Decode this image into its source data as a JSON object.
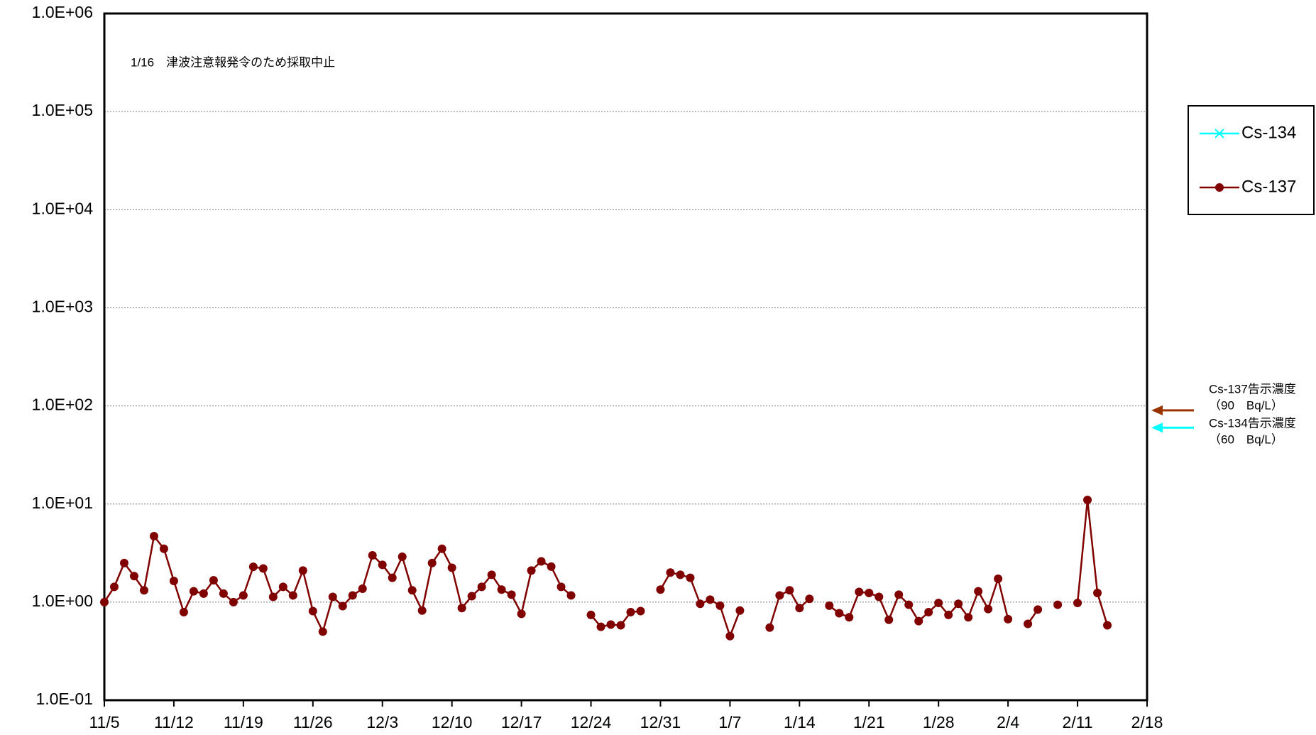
{
  "chart_data": {
    "type": "line",
    "log_scale": true,
    "grid": true,
    "legend_position": "right",
    "annotations": [
      "1/16　津波注意報発令のため採取中止"
    ],
    "limits": [
      {
        "name": "Cs-137",
        "value": 90,
        "color": "#993300",
        "label": [
          "Cs-137告示濃度",
          "（90　Bq/L）"
        ]
      },
      {
        "name": "Cs-134",
        "value": 60,
        "color": "#00ffff",
        "label": [
          "Cs-134告示濃度",
          "（60　Bq/L）"
        ]
      }
    ],
    "xlim": [
      0,
      105
    ],
    "xticks": [
      {
        "value": 0,
        "label": "11/5"
      },
      {
        "value": 7,
        "label": "11/12"
      },
      {
        "value": 14,
        "label": "11/19"
      },
      {
        "value": 21,
        "label": "11/26"
      },
      {
        "value": 28,
        "label": "12/3"
      },
      {
        "value": 35,
        "label": "12/10"
      },
      {
        "value": 42,
        "label": "12/17"
      },
      {
        "value": 49,
        "label": "12/24"
      },
      {
        "value": 56,
        "label": "12/31"
      },
      {
        "value": 63,
        "label": "1/7"
      },
      {
        "value": 70,
        "label": "1/14"
      },
      {
        "value": 77,
        "label": "1/21"
      },
      {
        "value": 84,
        "label": "1/28"
      },
      {
        "value": 91,
        "label": "2/4"
      },
      {
        "value": 98,
        "label": "2/11"
      },
      {
        "value": 105,
        "label": "2/18"
      }
    ],
    "ylim": [
      0.1,
      1000000
    ],
    "yticks": [
      {
        "value": 0.1,
        "label": "1.0E-01"
      },
      {
        "value": 1,
        "label": "1.0E+00"
      },
      {
        "value": 10,
        "label": "1.0E+01"
      },
      {
        "value": 100,
        "label": "1.0E+02"
      },
      {
        "value": 1000,
        "label": "1.0E+03"
      },
      {
        "value": 10000,
        "label": "1.0E+04"
      },
      {
        "value": 100000,
        "label": "1.0E+05"
      },
      {
        "value": 1000000,
        "label": "1.0E+06"
      }
    ],
    "x": [
      0,
      1,
      2,
      3,
      4,
      5,
      6,
      7,
      8,
      9,
      10,
      11,
      12,
      13,
      14,
      15,
      16,
      17,
      18,
      19,
      20,
      21,
      22,
      23,
      24,
      25,
      26,
      27,
      28,
      29,
      30,
      31,
      32,
      33,
      34,
      35,
      36,
      37,
      38,
      39,
      40,
      41,
      42,
      43,
      44,
      45,
      46,
      47,
      48,
      49,
      50,
      51,
      52,
      53,
      54,
      55,
      56,
      57,
      58,
      59,
      60,
      61,
      62,
      63,
      64,
      65,
      66,
      67,
      68,
      69,
      70,
      71,
      72,
      73,
      74,
      75,
      76,
      77,
      78,
      79,
      80,
      81,
      82,
      83,
      84,
      85,
      86,
      87,
      88,
      89,
      90,
      91,
      92,
      93,
      94,
      95,
      96,
      97,
      98,
      99,
      100,
      101
    ],
    "series": [
      {
        "name": "Cs-134",
        "color": "#00ffff",
        "marker": "x",
        "values": [
          null,
          null,
          null,
          null,
          null,
          null,
          null,
          null,
          null,
          null,
          null,
          null,
          null,
          null,
          null,
          null,
          null,
          null,
          null,
          null,
          null,
          null,
          null,
          null,
          null,
          null,
          null,
          null,
          null,
          null,
          null,
          null,
          null,
          null,
          null,
          null,
          null,
          null,
          null,
          null,
          null,
          null,
          null,
          null,
          null,
          null,
          null,
          null,
          null,
          null,
          null,
          null,
          null,
          null,
          null,
          null,
          null,
          null,
          null,
          null,
          null,
          null,
          null,
          null,
          null,
          null,
          null,
          null,
          null,
          null,
          null,
          null,
          null,
          null,
          null,
          null,
          null,
          null,
          null,
          null,
          null,
          null,
          null,
          null,
          null,
          null,
          null,
          null,
          null,
          null,
          null,
          null,
          null,
          null,
          null,
          null,
          null,
          null,
          null,
          null,
          null,
          null
        ]
      },
      {
        "name": "Cs-137",
        "color": "#800000",
        "marker": "circle",
        "values": [
          1.0,
          1.43,
          2.5,
          1.84,
          1.32,
          4.7,
          3.5,
          1.64,
          0.79,
          1.29,
          1.22,
          1.67,
          1.22,
          1.0,
          1.17,
          2.29,
          2.2,
          1.13,
          1.43,
          1.17,
          2.1,
          0.81,
          0.5,
          1.13,
          0.91,
          1.17,
          1.37,
          3.0,
          2.4,
          1.77,
          2.9,
          1.32,
          0.82,
          2.5,
          3.5,
          2.24,
          0.87,
          1.15,
          1.43,
          1.9,
          1.34,
          1.19,
          0.76,
          2.1,
          2.6,
          2.3,
          1.43,
          1.17,
          null,
          0.74,
          0.56,
          0.59,
          0.58,
          0.79,
          0.81,
          null,
          1.34,
          2.0,
          1.9,
          1.77,
          0.96,
          1.06,
          0.92,
          0.45,
          0.82,
          null,
          null,
          0.55,
          1.17,
          1.32,
          0.87,
          1.08,
          null,
          0.92,
          0.77,
          0.7,
          1.27,
          1.24,
          1.13,
          0.66,
          1.19,
          0.94,
          0.64,
          0.79,
          0.98,
          0.74,
          0.96,
          0.7,
          1.29,
          0.85,
          1.73,
          0.67,
          null,
          0.6,
          0.84,
          null,
          0.94,
          null,
          0.98,
          11,
          1.24,
          0.58
        ]
      }
    ]
  }
}
